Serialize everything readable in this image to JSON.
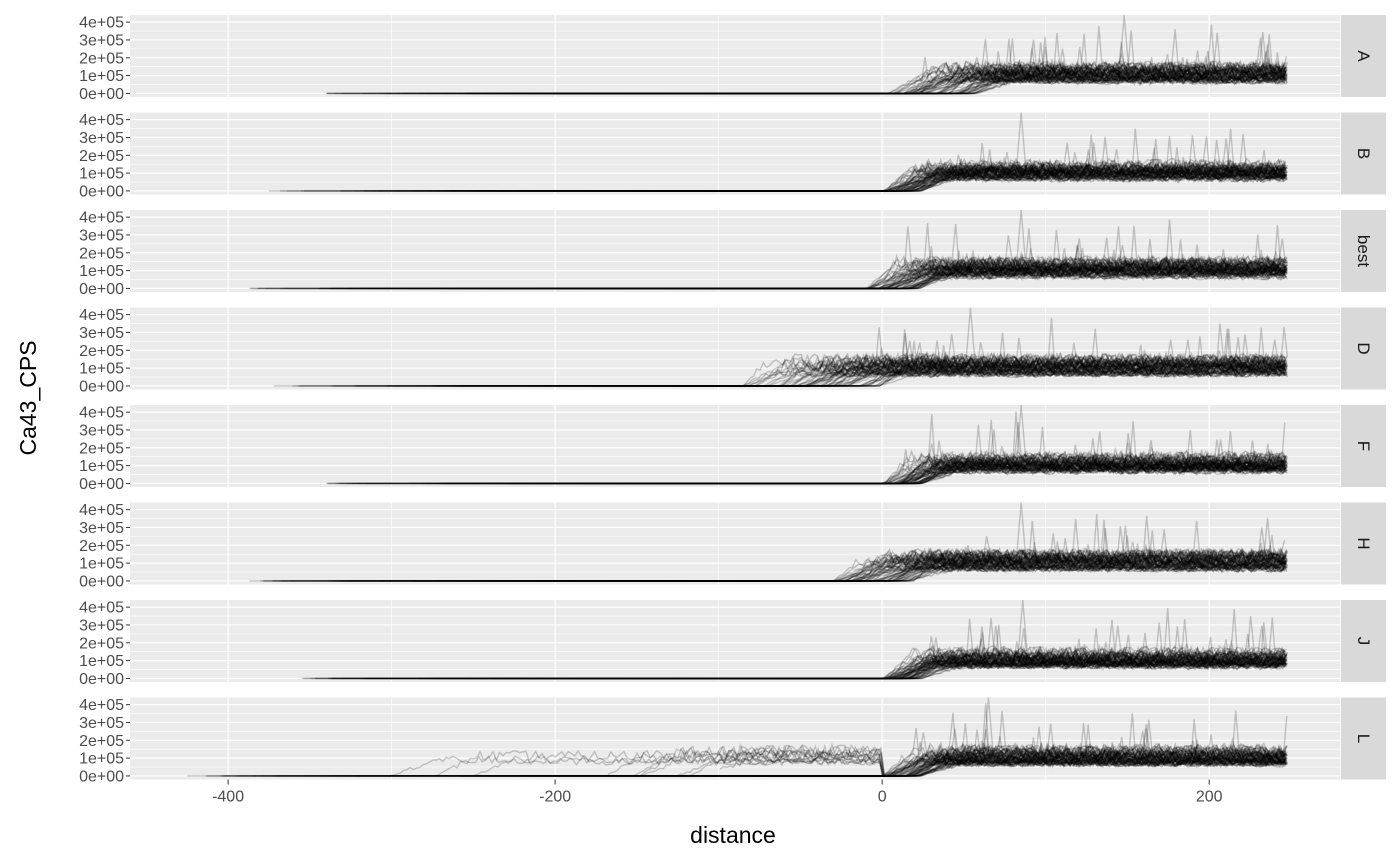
{
  "chart_data": {
    "type": "line",
    "xlabel": "distance",
    "ylabel": "Ca43_CPS",
    "xlim": [
      -460,
      280
    ],
    "ylim": [
      -20000,
      440000
    ],
    "x_ticks": [
      -400,
      -200,
      0,
      200
    ],
    "x_tick_labels": [
      "-400",
      "-200",
      "0",
      "200"
    ],
    "y_ticks": [
      0,
      100000,
      200000,
      300000,
      400000
    ],
    "y_tick_labels": [
      "0e+00",
      "1e+05",
      "2e+05",
      "3e+05",
      "4e+05"
    ],
    "grid": true,
    "legend": "none",
    "facet": "rows",
    "line_color": "#000000",
    "line_alpha": 0.2,
    "panel_background": "#ebebeb",
    "strip_background": "#d9d9d9",
    "panels": [
      {
        "label": "A",
        "traces": 70,
        "x_start": -340,
        "ramp_start": 0,
        "ramp_spread": 60,
        "plateau": 110000,
        "pre_signal": false,
        "peak_x": 148,
        "peak_y": 440000
      },
      {
        "label": "B",
        "traces": 70,
        "x_start": -375,
        "ramp_start": 0,
        "ramp_spread": 25,
        "plateau": 110000,
        "pre_signal": false,
        "peak_x": 85,
        "peak_y": 440000
      },
      {
        "label": "best",
        "traces": 70,
        "x_start": -387,
        "ramp_start": -10,
        "ramp_spread": 35,
        "plateau": 110000,
        "pre_signal": false,
        "peak_x": 85,
        "peak_y": 440000
      },
      {
        "label": "D",
        "traces": 70,
        "x_start": -372,
        "ramp_start": -90,
        "ramp_spread": 90,
        "plateau": 110000,
        "pre_signal": false,
        "peak_x": 54,
        "peak_y": 440000
      },
      {
        "label": "F",
        "traces": 70,
        "x_start": -340,
        "ramp_start": 0,
        "ramp_spread": 25,
        "plateau": 110000,
        "pre_signal": false,
        "peak_x": 85,
        "peak_y": 440000
      },
      {
        "label": "H",
        "traces": 70,
        "x_start": -387,
        "ramp_start": -30,
        "ramp_spread": 50,
        "plateau": 110000,
        "pre_signal": false,
        "peak_x": 85,
        "peak_y": 440000
      },
      {
        "label": "J",
        "traces": 70,
        "x_start": -355,
        "ramp_start": 0,
        "ramp_spread": 25,
        "plateau": 110000,
        "pre_signal": false,
        "peak_x": 86,
        "peak_y": 440000
      },
      {
        "label": "L",
        "traces": 70,
        "x_start": -425,
        "ramp_start": 0,
        "ramp_spread": 25,
        "plateau": 110000,
        "pre_signal": true,
        "peak_x": 65,
        "peak_y": 440000
      }
    ]
  }
}
